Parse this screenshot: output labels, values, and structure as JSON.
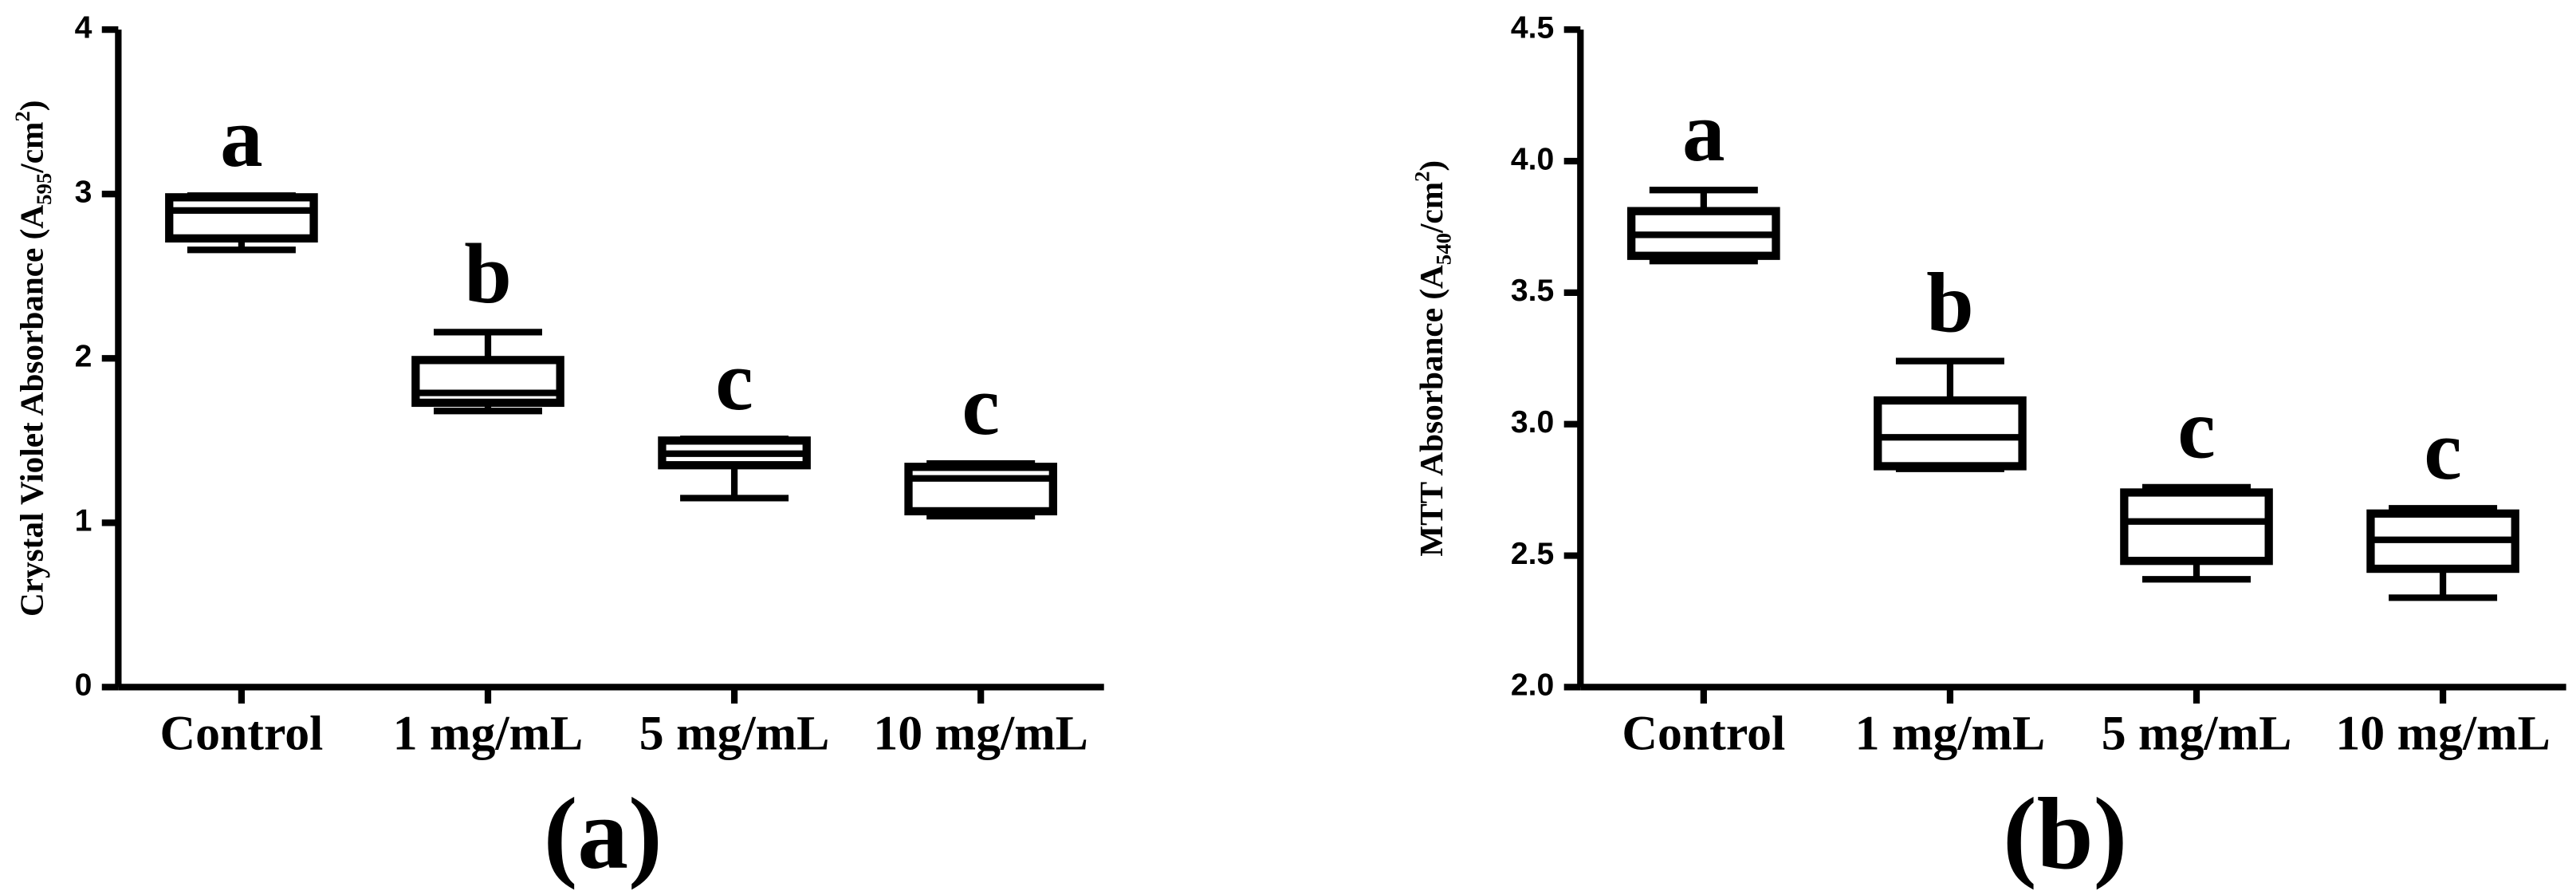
{
  "chart_data": [
    {
      "type": "box",
      "y_label": {
        "text": "Crystal Violet Absorbance (A",
        "sub": "595",
        "mid": "/cm",
        "sup": "2",
        "end": ")"
      },
      "categories": [
        "Control",
        "1 mg/mL",
        "5 mg/mL",
        "10 mg/mL"
      ],
      "boxes": [
        {
          "min": 2.66,
          "q1": 2.73,
          "median": 2.9,
          "q3": 2.98,
          "max": 2.99
        },
        {
          "min": 1.68,
          "q1": 1.73,
          "median": 1.79,
          "q3": 1.99,
          "max": 2.16
        },
        {
          "min": 1.15,
          "q1": 1.35,
          "median": 1.42,
          "q3": 1.5,
          "max": 1.51
        },
        {
          "min": 1.04,
          "q1": 1.07,
          "median": 1.27,
          "q3": 1.34,
          "max": 1.36
        }
      ],
      "annotations": [
        "a",
        "b",
        "c",
        "c"
      ],
      "color": "#000000",
      "ylim": [
        0,
        4
      ],
      "yticks": [
        0,
        1,
        2,
        3,
        4
      ],
      "panel_label": "(a)"
    },
    {
      "type": "box",
      "y_label": {
        "text": "MTT Absorbance (A",
        "sub": "540",
        "mid": "/cm",
        "sup": "2",
        "end": ")"
      },
      "categories": [
        "Control",
        "1 mg/mL",
        "5 mg/mL",
        "10 mg/mL"
      ],
      "boxes": [
        {
          "min": 3.62,
          "q1": 3.64,
          "median": 3.72,
          "q3": 3.81,
          "max": 3.89
        },
        {
          "min": 2.83,
          "q1": 2.84,
          "median": 2.95,
          "q3": 3.09,
          "max": 3.24
        },
        {
          "min": 2.41,
          "q1": 2.48,
          "median": 2.63,
          "q3": 2.74,
          "max": 2.76
        },
        {
          "min": 2.34,
          "q1": 2.45,
          "median": 2.56,
          "q3": 2.66,
          "max": 2.68
        }
      ],
      "annotations": [
        "a",
        "b",
        "c",
        "c"
      ],
      "color": "#000000",
      "ylim": [
        2.0,
        4.5
      ],
      "yticks": [
        {
          "value": 2.0,
          "label": "2.0"
        },
        2.5,
        {
          "value": 3.0,
          "label": "3.0"
        },
        3.5,
        {
          "value": 4.0,
          "label": "4.0"
        },
        4.5
      ],
      "panel_label": "(b)"
    }
  ]
}
